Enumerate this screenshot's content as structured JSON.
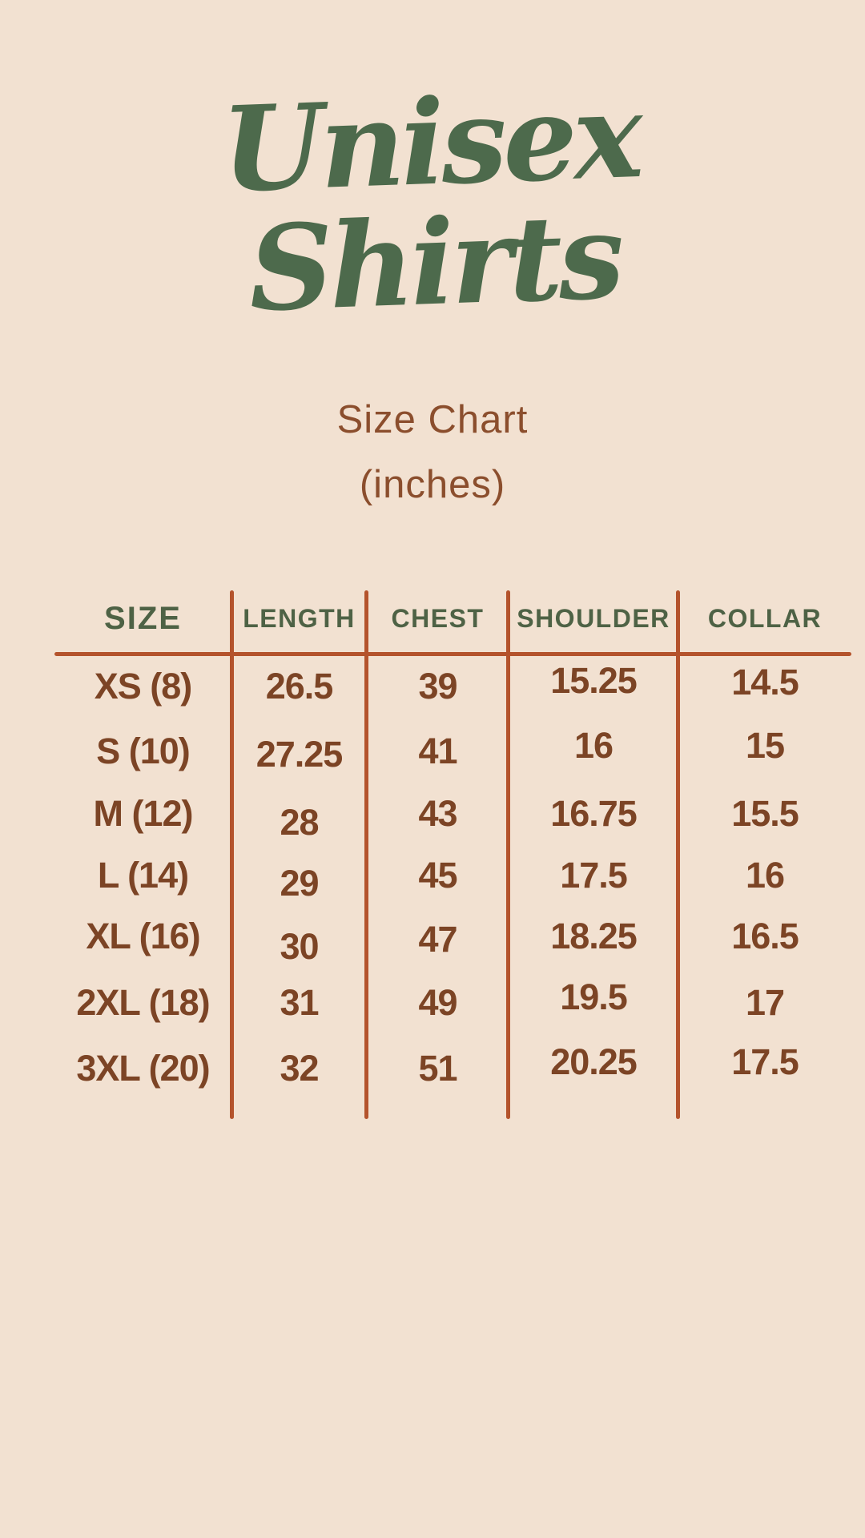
{
  "title": {
    "line1": "Unisex",
    "line2": "Shirts"
  },
  "subtitle": {
    "heading": "Size Chart",
    "unit": "(inches)"
  },
  "colors": {
    "background": "#f2e1d1",
    "title_green": "#4d6a4c",
    "header_green": "#4e6245",
    "value_brown": "#7c4425",
    "subtitle_brown": "#8b4e2d",
    "divider_rust": "#b4532c"
  },
  "chart_data": {
    "type": "table",
    "title": "Unisex Shirts",
    "subtitle": "Size Chart (inches)",
    "unit": "inches",
    "columns": [
      "SIZE",
      "LENGTH",
      "CHEST",
      "SHOULDER",
      "COLLAR"
    ],
    "rows": [
      {
        "size": "XS (8)",
        "length": 26.5,
        "chest": 39,
        "shoulder": 15.25,
        "collar": 14.5
      },
      {
        "size": "S (10)",
        "length": 27.25,
        "chest": 41,
        "shoulder": 16,
        "collar": 15
      },
      {
        "size": "M (12)",
        "length": 28,
        "chest": 43,
        "shoulder": 16.75,
        "collar": 15.5
      },
      {
        "size": "L (14)",
        "length": 29,
        "chest": 45,
        "shoulder": 17.5,
        "collar": 16
      },
      {
        "size": "XL (16)",
        "length": 30,
        "chest": 47,
        "shoulder": 18.25,
        "collar": 16.5
      },
      {
        "size": "2XL (18)",
        "length": 31,
        "chest": 49,
        "shoulder": 19.5,
        "collar": 17
      },
      {
        "size": "3XL (20)",
        "length": 32,
        "chest": 51,
        "shoulder": 20.25,
        "collar": 17.5
      }
    ]
  }
}
